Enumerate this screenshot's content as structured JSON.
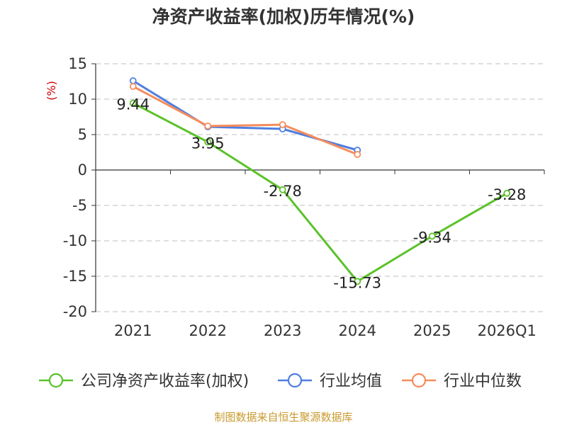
{
  "title": "净资产收益率(加权)历年情况(%)",
  "source": "制图数据来自恒生聚源数据库",
  "chart_data": {
    "type": "line",
    "categories": [
      "2021",
      "2022",
      "2023",
      "2024",
      "2025",
      "2026Q1"
    ],
    "ylabel": "(%)",
    "xlabel": "",
    "ylim": [
      -20,
      15
    ],
    "yticks": [
      15,
      10,
      5,
      0,
      -5,
      -10,
      -15,
      -20
    ],
    "grid": true,
    "legend_position": "bottom",
    "series": [
      {
        "name": "公司净资产收益率(加权)",
        "color": "#5bc22a",
        "values": [
          9.44,
          3.95,
          -2.78,
          -15.73,
          -9.34,
          -3.28
        ],
        "labels": [
          "9.44",
          "3.95",
          "-2.78",
          "-15.73",
          "-9.34",
          "-3.28"
        ]
      },
      {
        "name": "行业均值",
        "color": "#4f7ee0",
        "values": [
          12.6,
          6.1,
          5.8,
          2.8,
          null,
          null
        ]
      },
      {
        "name": "行业中位数",
        "color": "#f58c5b",
        "values": [
          11.8,
          6.2,
          6.4,
          2.2,
          null,
          null
        ]
      }
    ]
  }
}
